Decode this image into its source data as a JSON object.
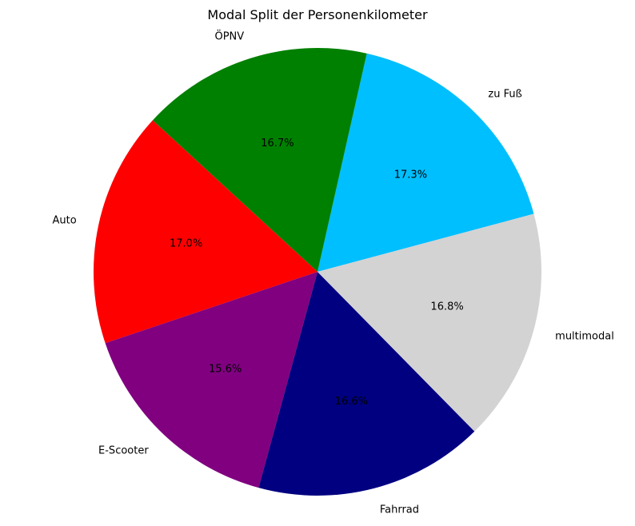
{
  "chart_data": {
    "type": "pie",
    "title": "Modal Split der Personenkilometer",
    "slices": [
      {
        "label": "zu Fuß",
        "value": 17.3,
        "pct_label": "17.3%",
        "color": "#00BFFF"
      },
      {
        "label": "ÖPNV",
        "value": 16.7,
        "pct_label": "16.7%",
        "color": "#008000"
      },
      {
        "label": "Auto",
        "value": 17.0,
        "pct_label": "17.0%",
        "color": "#FF0000"
      },
      {
        "label": "E-Scooter",
        "value": 15.6,
        "pct_label": "15.6%",
        "color": "#800080"
      },
      {
        "label": "Fahrrad",
        "value": 16.6,
        "pct_label": "16.6%",
        "color": "#000080"
      },
      {
        "label": "multimodal",
        "value": 16.8,
        "pct_label": "16.8%",
        "color": "#D3D3D3"
      }
    ],
    "start_angle_deg": 15,
    "direction": "counterclockwise",
    "legend": "none",
    "grid": false
  }
}
